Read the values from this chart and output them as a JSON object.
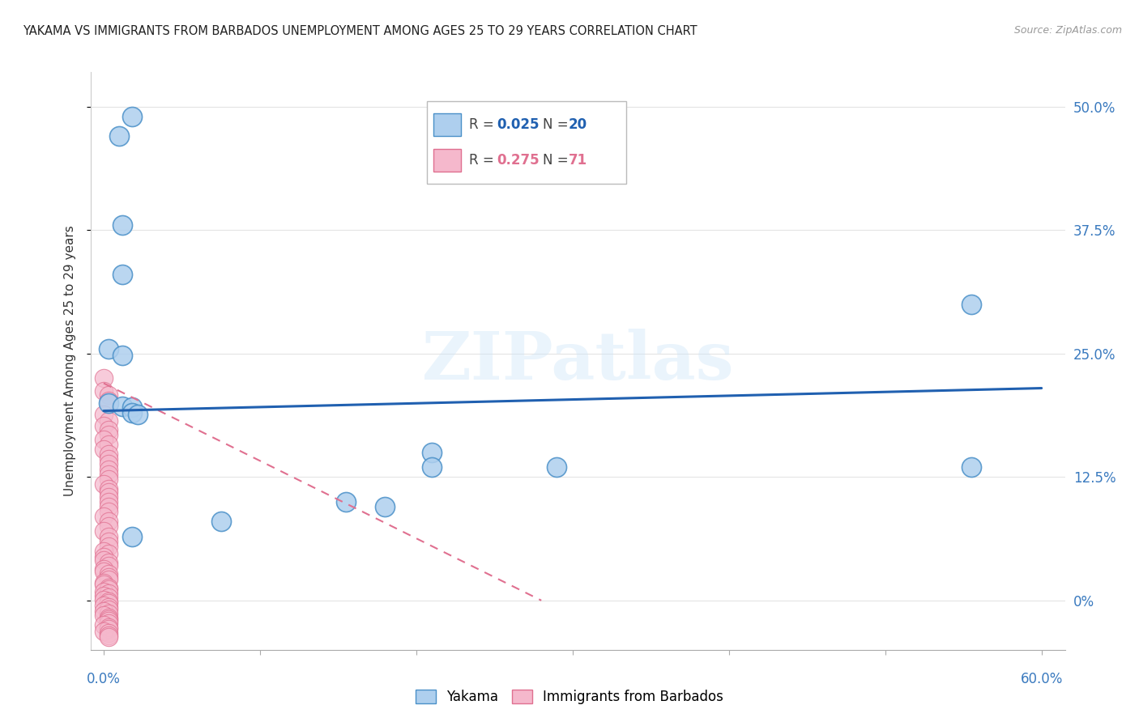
{
  "title": "YAKAMA VS IMMIGRANTS FROM BARBADOS UNEMPLOYMENT AMONG AGES 25 TO 29 YEARS CORRELATION CHART",
  "source": "Source: ZipAtlas.com",
  "ylabel": "Unemployment Among Ages 25 to 29 years",
  "watermark": "ZIPatlas",
  "blue_face": "#aecfee",
  "blue_edge": "#4a90c8",
  "pink_face": "#f5b8cc",
  "pink_edge": "#e07090",
  "blue_line_color": "#2060b0",
  "pink_line_color": "#e07090",
  "tick_label_color": "#3a7abf",
  "blue_scatter": [
    [
      0.01,
      0.47
    ],
    [
      0.018,
      0.49
    ],
    [
      0.012,
      0.38
    ],
    [
      0.012,
      0.33
    ],
    [
      0.003,
      0.255
    ],
    [
      0.012,
      0.248
    ],
    [
      0.003,
      0.2
    ],
    [
      0.012,
      0.197
    ],
    [
      0.018,
      0.196
    ],
    [
      0.018,
      0.19
    ],
    [
      0.022,
      0.188
    ],
    [
      0.555,
      0.3
    ],
    [
      0.21,
      0.15
    ],
    [
      0.21,
      0.135
    ],
    [
      0.155,
      0.1
    ],
    [
      0.18,
      0.095
    ],
    [
      0.29,
      0.135
    ],
    [
      0.555,
      0.135
    ],
    [
      0.075,
      0.08
    ],
    [
      0.018,
      0.065
    ]
  ],
  "pink_scatter_x": [
    0.0,
    0.0,
    0.003,
    0.003,
    0.0,
    0.003,
    0.0,
    0.003,
    0.003,
    0.0,
    0.003,
    0.0,
    0.003,
    0.003,
    0.003,
    0.003,
    0.003,
    0.003,
    0.0,
    0.003,
    0.003,
    0.003,
    0.003,
    0.003,
    0.003,
    0.0,
    0.003,
    0.003,
    0.0,
    0.003,
    0.003,
    0.003,
    0.0,
    0.003,
    0.0,
    0.0,
    0.003,
    0.003,
    0.0,
    0.0,
    0.003,
    0.003,
    0.003,
    0.0,
    0.0,
    0.003,
    0.003,
    0.0,
    0.003,
    0.0,
    0.003,
    0.0,
    0.003,
    0.003,
    0.0,
    0.003,
    0.003,
    0.0,
    0.003,
    0.0,
    0.003,
    0.003,
    0.003,
    0.003,
    0.0,
    0.003,
    0.003,
    0.0,
    0.003,
    0.003,
    0.003
  ],
  "pink_scatter_y": [
    0.225,
    0.212,
    0.208,
    0.202,
    0.188,
    0.182,
    0.177,
    0.173,
    0.168,
    0.163,
    0.158,
    0.153,
    0.148,
    0.143,
    0.138,
    0.133,
    0.128,
    0.123,
    0.118,
    0.113,
    0.11,
    0.105,
    0.1,
    0.095,
    0.09,
    0.085,
    0.08,
    0.075,
    0.07,
    0.065,
    0.06,
    0.055,
    0.05,
    0.047,
    0.044,
    0.041,
    0.038,
    0.035,
    0.032,
    0.029,
    0.027,
    0.024,
    0.021,
    0.018,
    0.016,
    0.013,
    0.011,
    0.009,
    0.007,
    0.005,
    0.003,
    0.001,
    -0.001,
    -0.003,
    -0.005,
    -0.007,
    -0.009,
    -0.011,
    -0.013,
    -0.015,
    -0.017,
    -0.019,
    -0.021,
    -0.023,
    -0.025,
    -0.027,
    -0.029,
    -0.031,
    -0.033,
    -0.035,
    -0.037
  ],
  "xlim": [
    -0.008,
    0.615
  ],
  "ylim": [
    -0.05,
    0.535
  ],
  "yticks": [
    0.0,
    0.125,
    0.25,
    0.375,
    0.5
  ],
  "ytick_labels": [
    "0%",
    "12.5%",
    "25.0%",
    "37.5%",
    "50.0%"
  ],
  "xtick_positions": [
    0.0,
    0.1,
    0.2,
    0.3,
    0.4,
    0.5,
    0.6
  ],
  "blue_line_y0": 0.192,
  "blue_line_y1": 0.215,
  "pink_line_x0": 0.0,
  "pink_line_y0": 0.22,
  "pink_line_x1": 0.28,
  "pink_line_y1": 0.0,
  "background_color": "#ffffff",
  "grid_color": "#e4e4e4"
}
